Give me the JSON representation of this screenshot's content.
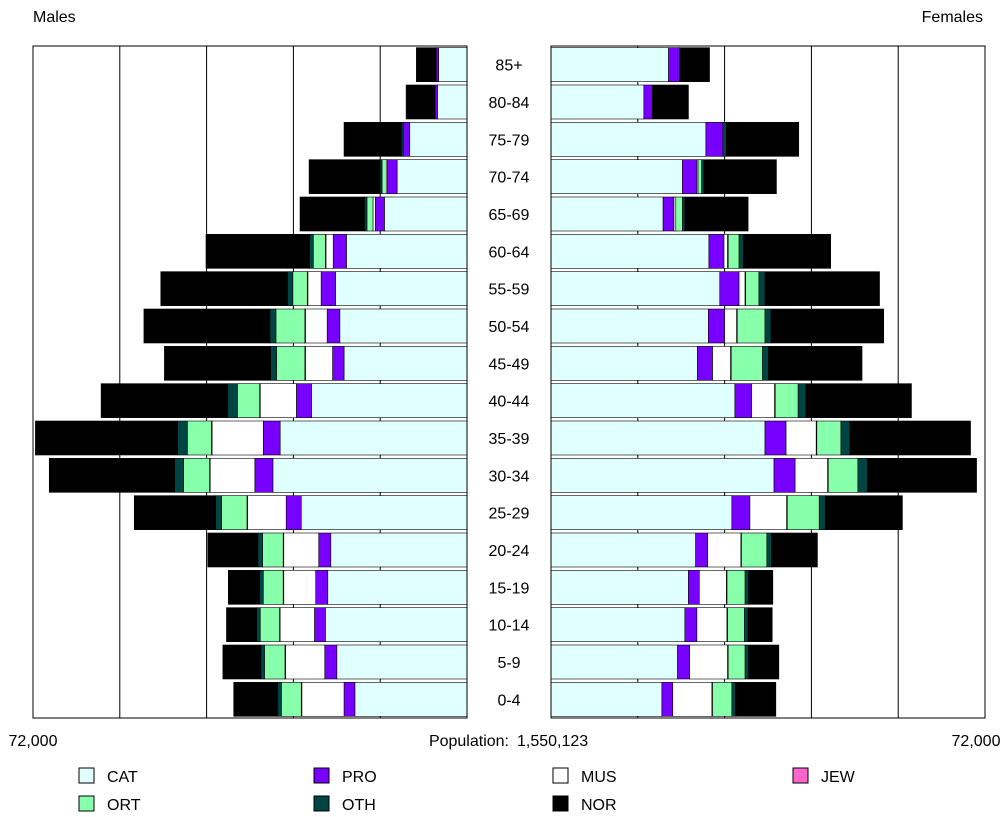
{
  "chart_data": {
    "type": "bar",
    "subtype": "population-pyramid",
    "left_label": "Males",
    "right_label": "Females",
    "left_axis_max_label": "72,000",
    "right_axis_max_label": "72,000",
    "axis_max": 72000,
    "grid": true,
    "legend_placement": "bottom",
    "population_label": "Population:",
    "population_value": "1,550,123",
    "categories": [
      "0-4",
      "5-9",
      "10-14",
      "15-19",
      "20-24",
      "25-29",
      "30-34",
      "35-39",
      "40-44",
      "45-49",
      "50-54",
      "55-59",
      "60-64",
      "65-69",
      "70-74",
      "75-79",
      "80-84",
      "85+"
    ],
    "series": [
      {
        "name": "CAT",
        "color": "#e0ffff",
        "males": [
          18600,
          21600,
          23500,
          23100,
          22600,
          27500,
          32200,
          31000,
          25800,
          20400,
          21100,
          21800,
          20000,
          13700,
          11600,
          9500,
          4900,
          4700
        ],
        "females": [
          18400,
          21000,
          22200,
          22800,
          24000,
          30000,
          37000,
          35500,
          30500,
          24300,
          26100,
          28000,
          26200,
          18600,
          21800,
          25700,
          15400,
          19500
        ]
      },
      {
        "name": "PRO",
        "color": "#7700ff",
        "males": [
          1800,
          2000,
          1800,
          2000,
          2000,
          2500,
          3000,
          2800,
          2500,
          1900,
          2100,
          2400,
          2200,
          1500,
          1600,
          1100,
          400,
          400
        ],
        "females": [
          1800,
          2000,
          2000,
          1800,
          2000,
          3000,
          3500,
          3500,
          2800,
          2500,
          2700,
          3200,
          2500,
          1800,
          2400,
          2800,
          1400,
          1800
        ]
      },
      {
        "name": "MUS",
        "color": "#ffffff",
        "males": [
          7000,
          6500,
          5700,
          5300,
          5800,
          6400,
          7400,
          8500,
          6000,
          4500,
          3600,
          2200,
          1200,
          400,
          200,
          0,
          0,
          0
        ],
        "females": [
          6500,
          6300,
          5000,
          4500,
          5500,
          6100,
          5400,
          5000,
          3800,
          3000,
          2000,
          1000,
          600,
          300,
          200,
          0,
          0,
          0
        ]
      },
      {
        "name": "JEW",
        "color": "#ff66cc",
        "males": [
          100,
          100,
          100,
          100,
          100,
          100,
          100,
          100,
          100,
          100,
          100,
          100,
          100,
          0,
          0,
          0,
          0,
          0
        ],
        "females": [
          100,
          100,
          100,
          100,
          100,
          100,
          100,
          100,
          100,
          100,
          100,
          100,
          100,
          0,
          0,
          0,
          0,
          0
        ]
      },
      {
        "name": "ORT",
        "color": "#88ffaa",
        "males": [
          3300,
          3400,
          3200,
          3300,
          3400,
          4200,
          4300,
          4000,
          3700,
          4700,
          4800,
          2400,
          2000,
          1000,
          700,
          0,
          0,
          0
        ],
        "females": [
          3200,
          2800,
          2800,
          3000,
          4200,
          5300,
          4900,
          4000,
          3800,
          5200,
          4600,
          2200,
          1800,
          1100,
          600,
          0,
          0,
          0
        ]
      },
      {
        "name": "OTH",
        "color": "#004444",
        "males": [
          600,
          600,
          600,
          600,
          800,
          1000,
          1500,
          1600,
          1600,
          1000,
          1000,
          900,
          600,
          400,
          300,
          300,
          0,
          0
        ],
        "females": [
          600,
          600,
          600,
          600,
          800,
          1000,
          1600,
          1500,
          1300,
          1000,
          1000,
          1000,
          700,
          400,
          400,
          600,
          0,
          0
        ]
      },
      {
        "name": "NOR",
        "color": "#000000",
        "males": [
          7300,
          6300,
          5000,
          5200,
          8300,
          13500,
          20800,
          23600,
          21000,
          17600,
          20900,
          21000,
          17200,
          10700,
          11800,
          9500,
          4800,
          3300
        ],
        "females": [
          6700,
          5000,
          4000,
          4000,
          7600,
          12800,
          18100,
          20000,
          17500,
          15500,
          18700,
          19000,
          14500,
          10500,
          12000,
          12000,
          6000,
          5000
        ]
      }
    ]
  }
}
